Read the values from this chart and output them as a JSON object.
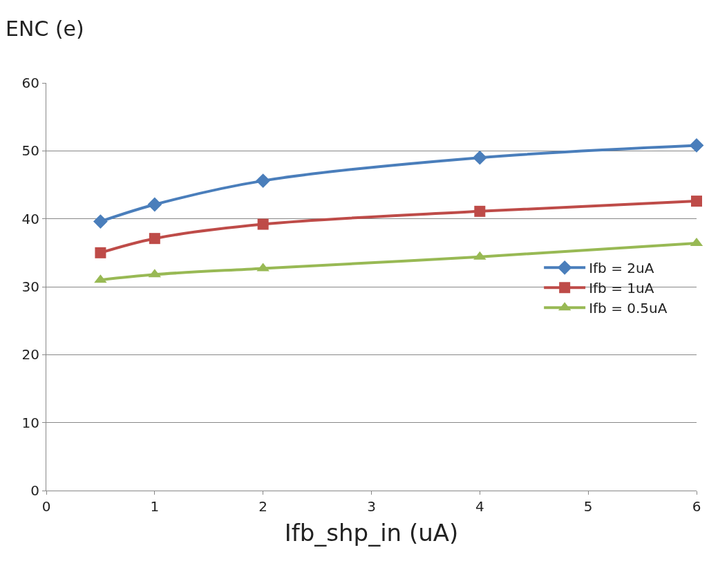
{
  "chart_data": {
    "type": "line",
    "ylabel": "ENC (e)",
    "xlabel": "Ifb_shp_in (uA)",
    "x": [
      0.5,
      1,
      2,
      4,
      6
    ],
    "series": [
      {
        "name": "Ifb = 2uA",
        "color": "#4a7ebb",
        "marker": "diamond",
        "values": [
          39.6,
          42.1,
          45.6,
          49.0,
          50.8
        ]
      },
      {
        "name": "Ifb = 1uA",
        "color": "#be4b48",
        "marker": "square",
        "values": [
          35.0,
          37.1,
          39.2,
          41.1,
          42.6
        ]
      },
      {
        "name": "Ifb = 0.5uA",
        "color": "#98b954",
        "marker": "triangle",
        "values": [
          31.0,
          31.8,
          32.7,
          34.4,
          36.4
        ]
      }
    ],
    "xlim": [
      0,
      6
    ],
    "xticks": [
      0,
      1,
      2,
      3,
      4,
      5,
      6
    ],
    "ylim": [
      0,
      60
    ],
    "yticks": [
      0,
      10,
      20,
      30,
      40,
      50,
      60
    ],
    "grid": "y",
    "legend": "right",
    "line_style": "solid"
  }
}
